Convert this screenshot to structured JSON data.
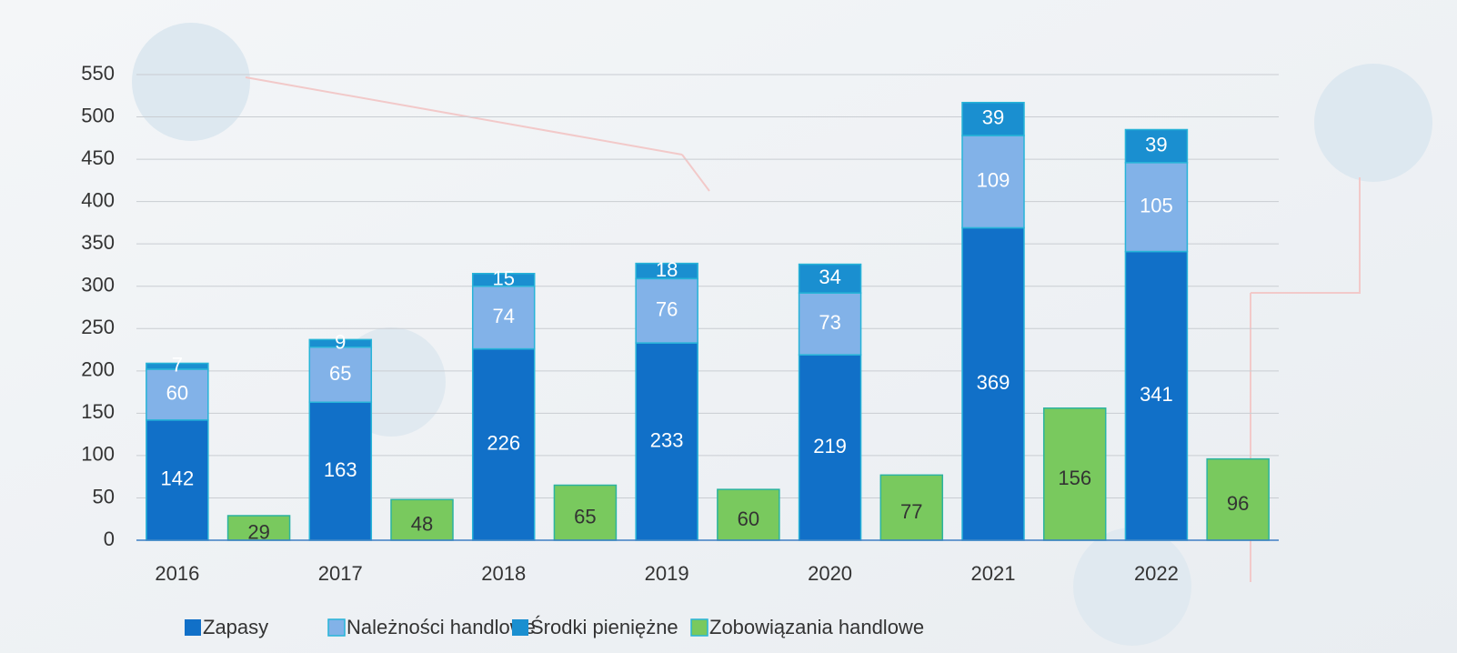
{
  "chart_data": {
    "type": "bar",
    "stacked": true,
    "categories": [
      "2016",
      "2017",
      "2018",
      "2019",
      "2020",
      "2021",
      "2022"
    ],
    "series": [
      {
        "name": "Zapasy",
        "color": "#1170c8",
        "stack": "a",
        "values": [
          142,
          163,
          226,
          233,
          219,
          369,
          341
        ]
      },
      {
        "name": "Należności handlowe",
        "color": "#82b2e8",
        "stack": "a",
        "values": [
          60,
          65,
          74,
          76,
          73,
          109,
          105
        ]
      },
      {
        "name": "Środki pieniężne",
        "color": "#1a8fd0",
        "stack": "a",
        "values": [
          7,
          9,
          15,
          18,
          34,
          39,
          39
        ]
      },
      {
        "name": "Zobowiązania handlowe",
        "color": "#79c95e",
        "stack": "b",
        "values": [
          29,
          48,
          65,
          60,
          77,
          156,
          96
        ]
      }
    ],
    "ylim": [
      0,
      550
    ],
    "yticks": [
      0,
      50,
      100,
      150,
      200,
      250,
      300,
      350,
      400,
      450,
      500,
      550
    ],
    "grid": true,
    "legend": "bottom"
  }
}
